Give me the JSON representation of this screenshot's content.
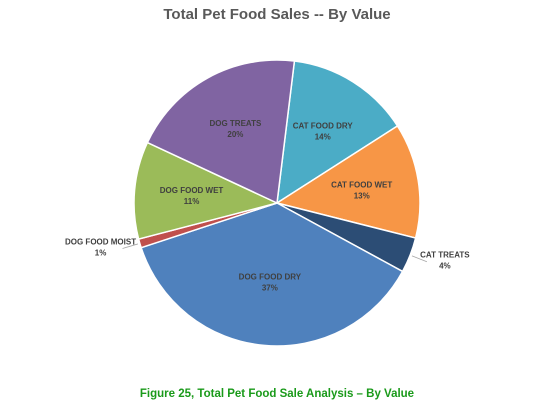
{
  "chart_data": {
    "type": "pie",
    "title": "Total Pet Food Sales -- By Value",
    "slices": [
      {
        "name": "CAT FOOD DRY",
        "value": 14,
        "label": "14%",
        "color": "#4BACC6"
      },
      {
        "name": "CAT FOOD WET",
        "value": 13,
        "label": "13%",
        "color": "#F79646"
      },
      {
        "name": "CAT TREATS",
        "value": 4,
        "label": "4%",
        "color": "#2C4D75"
      },
      {
        "name": "DOG FOOD DRY",
        "value": 37,
        "label": "37%",
        "color": "#4F81BD"
      },
      {
        "name": "DOG FOOD MOIST",
        "value": 1,
        "label": "1%",
        "color": "#C0504D"
      },
      {
        "name": "DOG FOOD WET",
        "value": 11,
        "label": "11%",
        "color": "#9BBB59"
      },
      {
        "name": "DOG TREATS",
        "value": 20,
        "label": "20%",
        "color": "#8064A2"
      }
    ]
  },
  "caption": "Figure 25, Total Pet Food Sale Analysis – By Value"
}
